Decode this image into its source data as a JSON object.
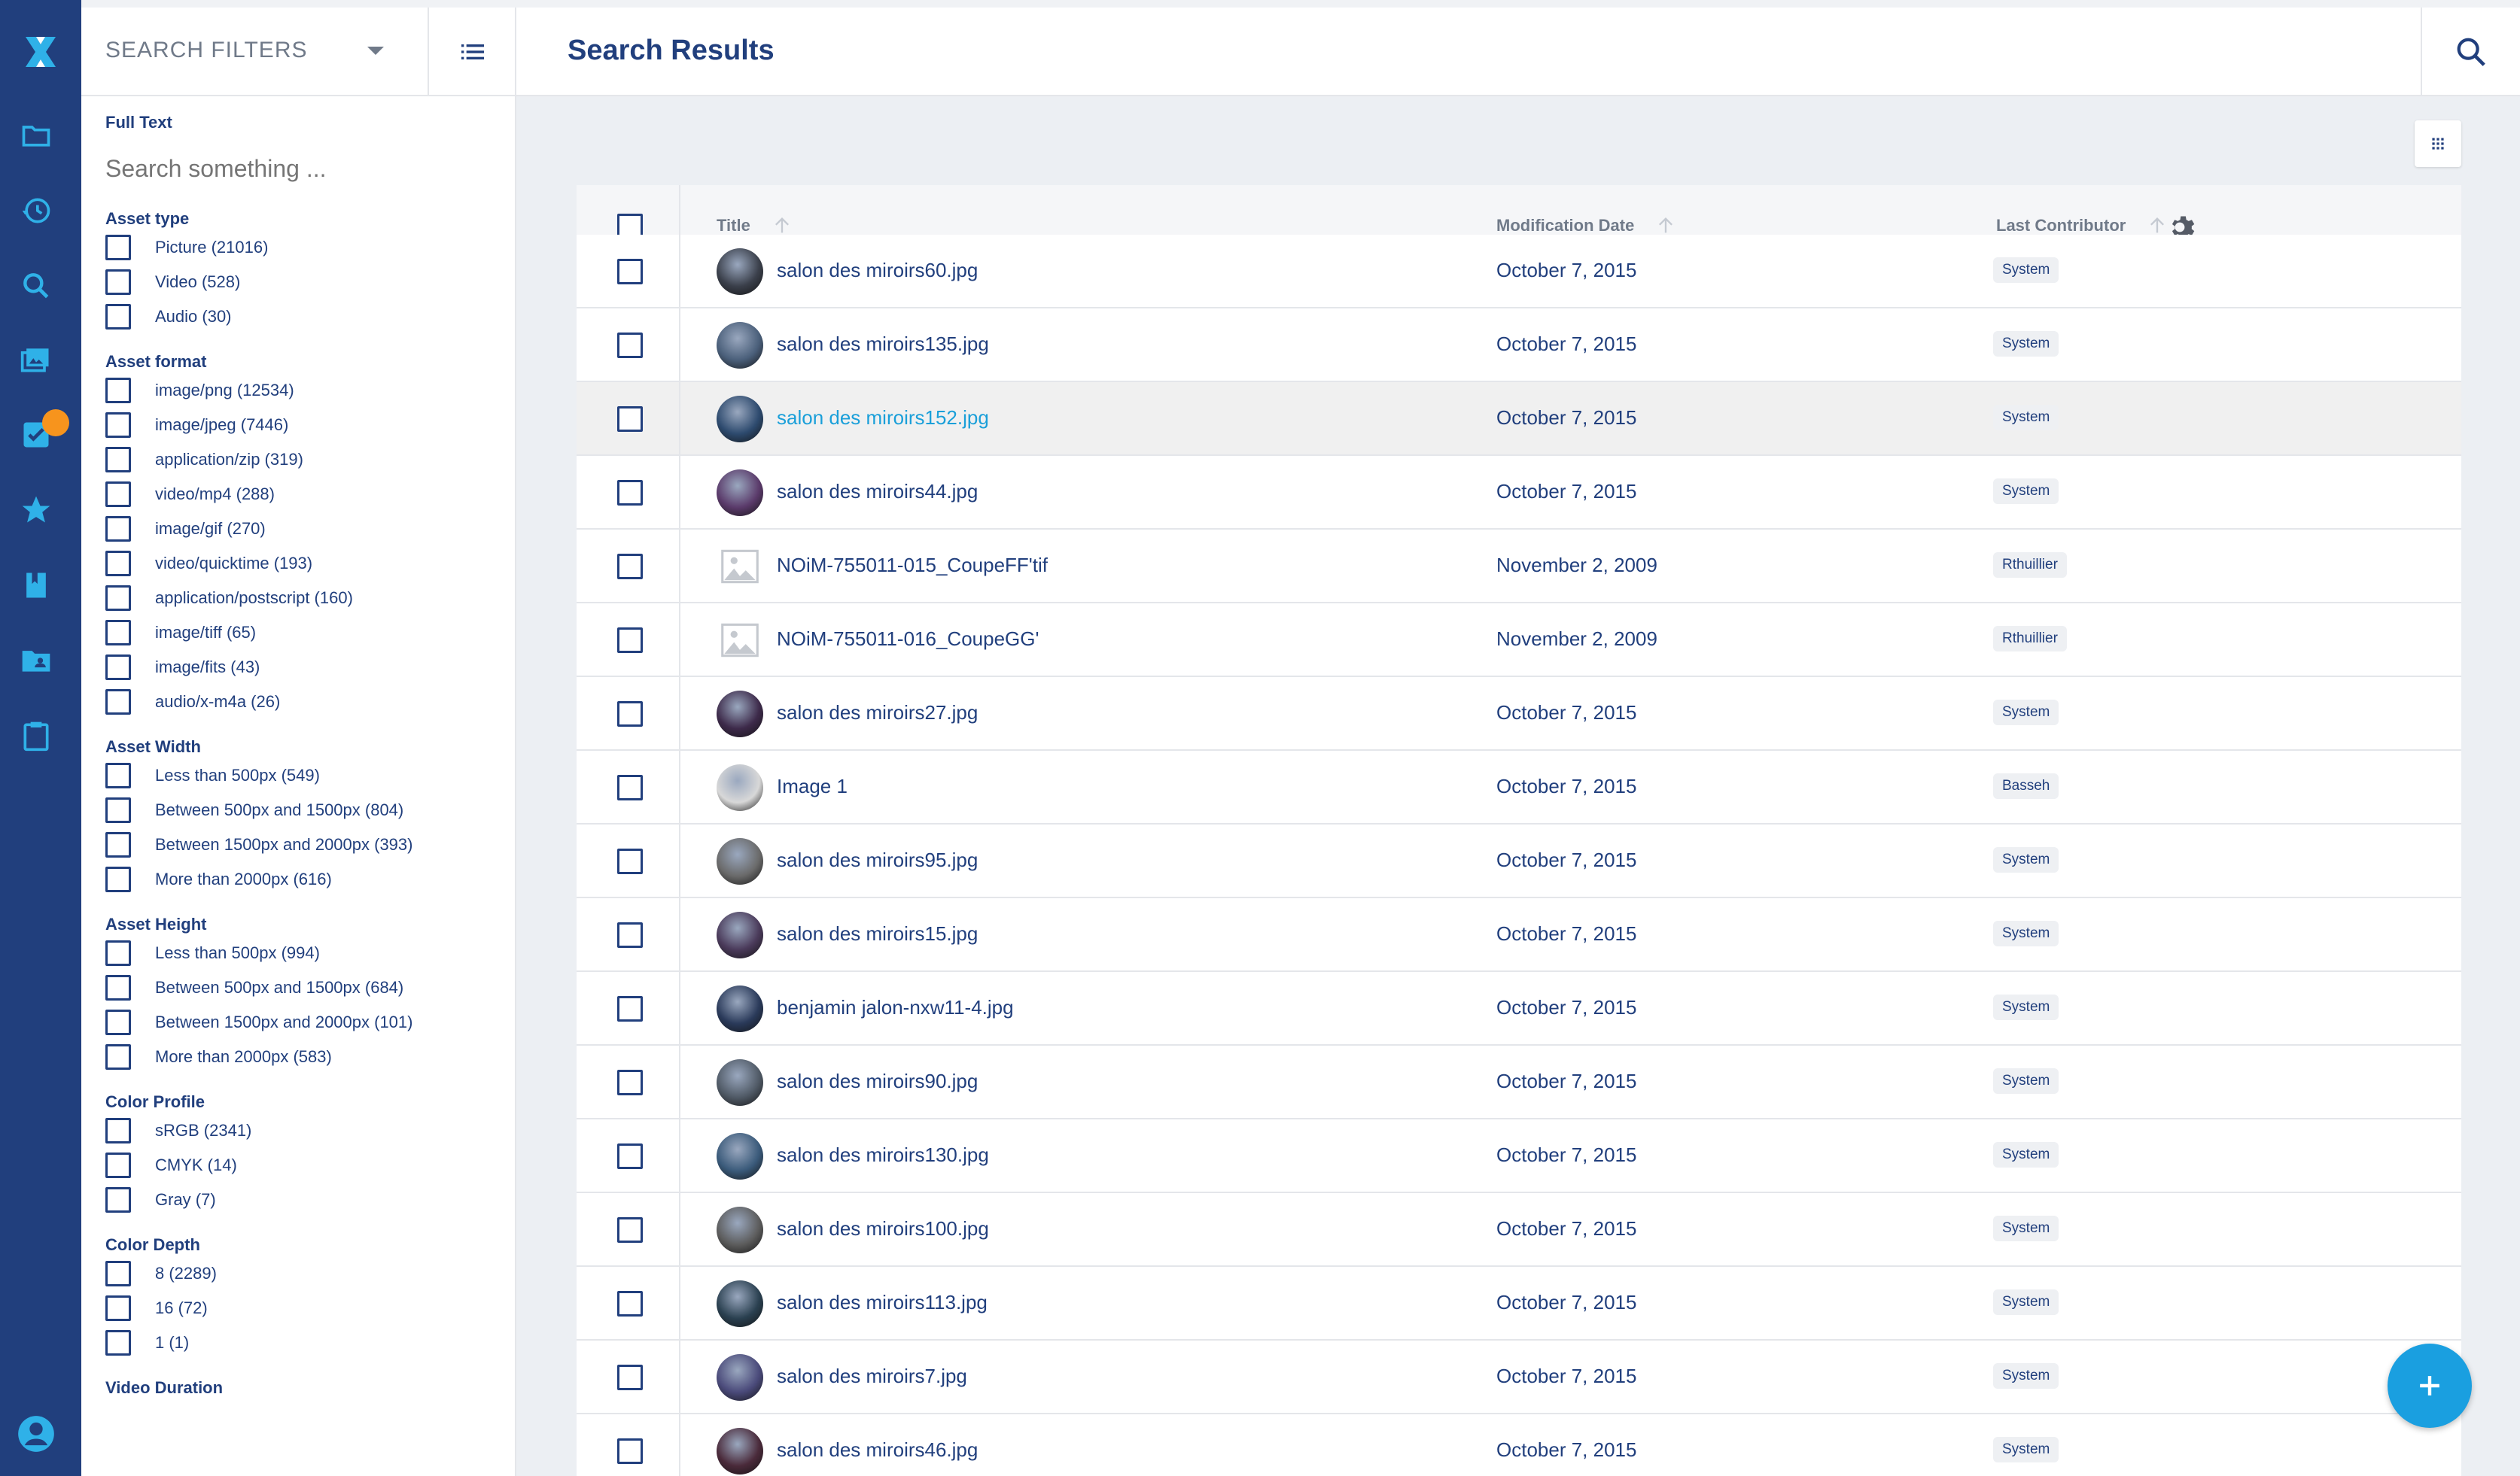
{
  "rail": {
    "items": [
      "folder-icon",
      "history-icon",
      "search-icon",
      "assets-icon",
      "tasks-icon",
      "favorites-icon",
      "collections-icon",
      "shared-folder-icon",
      "clipboard-icon"
    ],
    "user": "user-icon"
  },
  "filters": {
    "title": "SEARCH FILTERS",
    "fulltext_label": "Full Text",
    "fulltext_placeholder": "Search something ...",
    "groups": [
      {
        "label": "Asset type",
        "items": [
          "Picture (21016)",
          "Video (528)",
          "Audio (30)"
        ]
      },
      {
        "label": "Asset format",
        "items": [
          "image/png (12534)",
          "image/jpeg (7446)",
          "application/zip (319)",
          "video/mp4 (288)",
          "image/gif (270)",
          "video/quicktime (193)",
          "application/postscript (160)",
          "image/tiff (65)",
          "image/fits (43)",
          "audio/x-m4a (26)"
        ]
      },
      {
        "label": "Asset Width",
        "items": [
          "Less than 500px (549)",
          "Between 500px and 1500px (804)",
          "Between 1500px and 2000px (393)",
          "More than 2000px (616)"
        ]
      },
      {
        "label": "Asset Height",
        "items": [
          "Less than 500px (994)",
          "Between 500px and 1500px (684)",
          "Between 1500px and 2000px (101)",
          "More than 2000px (583)"
        ]
      },
      {
        "label": "Color Profile",
        "items": [
          "sRGB (2341)",
          "CMYK (14)",
          "Gray (7)"
        ]
      },
      {
        "label": "Color Depth",
        "items": [
          "8 (2289)",
          "16 (72)",
          "1 (1)"
        ]
      },
      {
        "label": "Video Duration",
        "items": []
      }
    ]
  },
  "main": {
    "title": "Search Results",
    "columns": {
      "title": "Title",
      "date": "Modification Date",
      "contributor": "Last Contributor"
    },
    "rows": [
      {
        "title": "salon des miroirs60.jpg",
        "date": "October 7, 2015",
        "contributor": "System",
        "thumb": "#3a3f4a"
      },
      {
        "title": "salon des miroirs135.jpg",
        "date": "October 7, 2015",
        "contributor": "System",
        "thumb": "#4a5f7a"
      },
      {
        "title": "salon des miroirs152.jpg",
        "date": "October 7, 2015",
        "contributor": "System",
        "thumb": "#2d4a6e"
      },
      {
        "title": "salon des miroirs44.jpg",
        "date": "October 7, 2015",
        "contributor": "System",
        "thumb": "#5a3a6a"
      },
      {
        "title": "NOiM-755011-015_CoupeFF'tif",
        "date": "November 2, 2009",
        "contributor": "Rthuillier",
        "thumb": "placeholder"
      },
      {
        "title": "NOiM-755011-016_CoupeGG'",
        "date": "November 2, 2009",
        "contributor": "Rthuillier",
        "thumb": "placeholder"
      },
      {
        "title": "salon des miroirs27.jpg",
        "date": "October 7, 2015",
        "contributor": "System",
        "thumb": "#3d2a4a"
      },
      {
        "title": "Image 1",
        "date": "October 7, 2015",
        "contributor": "Basseh",
        "thumb": "#d8d8d8"
      },
      {
        "title": "salon des miroirs95.jpg",
        "date": "October 7, 2015",
        "contributor": "System",
        "thumb": "#6a6a6a"
      },
      {
        "title": "salon des miroirs15.jpg",
        "date": "October 7, 2015",
        "contributor": "System",
        "thumb": "#4a3a5a"
      },
      {
        "title": "benjamin jalon-nxw11-4.jpg",
        "date": "October 7, 2015",
        "contributor": "System",
        "thumb": "#2a3a5a"
      },
      {
        "title": "salon des miroirs90.jpg",
        "date": "October 7, 2015",
        "contributor": "System",
        "thumb": "#505a66"
      },
      {
        "title": "salon des miroirs130.jpg",
        "date": "October 7, 2015",
        "contributor": "System",
        "thumb": "#3a5a7a"
      },
      {
        "title": "salon des miroirs100.jpg",
        "date": "October 7, 2015",
        "contributor": "System",
        "thumb": "#5c5c5c"
      },
      {
        "title": "salon des miroirs113.jpg",
        "date": "October 7, 2015",
        "contributor": "System",
        "thumb": "#2a4050"
      },
      {
        "title": "salon des miroirs7.jpg",
        "date": "October 7, 2015",
        "contributor": "System",
        "thumb": "#4a4a7a"
      },
      {
        "title": "salon des miroirs46.jpg",
        "date": "October 7, 2015",
        "contributor": "System",
        "thumb": "#4a2a3a"
      }
    ],
    "hover_row": 2
  },
  "colors": {
    "accent": "#1a9fe0",
    "navy": "#213f7d",
    "badge": "#f7941d"
  }
}
